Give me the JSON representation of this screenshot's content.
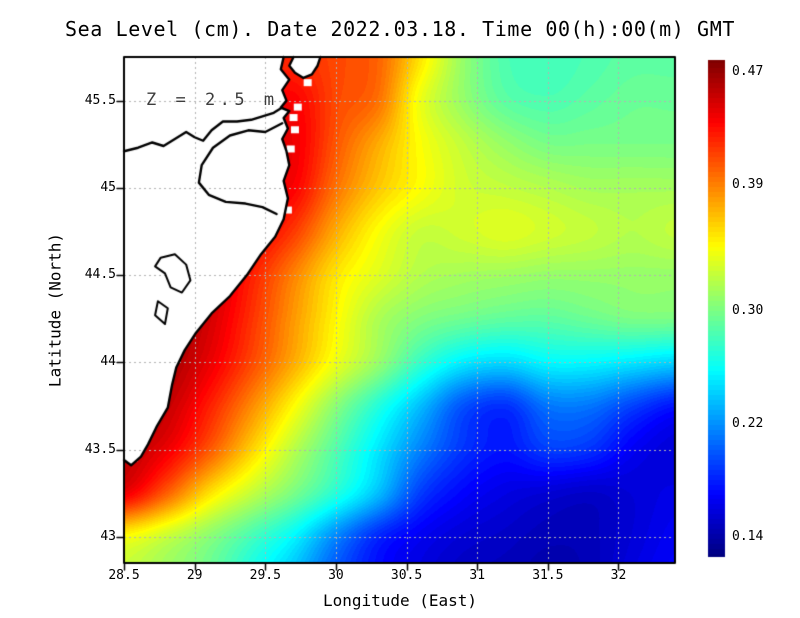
{
  "figure": {
    "title": "Sea Level (cm). Date 2022.03.18. Time 00(h):00(m) GMT",
    "annotation": "Z = 2.5 m",
    "background_color": "#ffffff",
    "land_color": "#ffffff",
    "coast_color": "#000000",
    "grid_color": "#b3b3b3"
  },
  "axes": {
    "x_label": "Longitude (East)",
    "y_label": "Latitude (North)",
    "x_range": [
      28.5,
      32.4
    ],
    "y_range": [
      42.85,
      45.75
    ],
    "x_ticks": [
      28.5,
      29,
      29.5,
      30,
      30.5,
      31,
      31.5,
      32
    ],
    "x_tick_labels": [
      "28.5",
      "29",
      "29.5",
      "30",
      "30.5",
      "31",
      "31.5",
      "32"
    ],
    "y_ticks": [
      45.5,
      45,
      44.5,
      44,
      43.5,
      43
    ],
    "y_tick_labels": [
      "45.5",
      "45",
      "44.5",
      "44",
      "43.5",
      "43"
    ],
    "grid": "dotted"
  },
  "colorbar": {
    "colormap": "jet",
    "vmin": 0.1255,
    "vmax": 0.4785,
    "ticks": [
      0.47,
      0.39,
      0.3,
      0.22,
      0.14
    ],
    "tick_labels": [
      "0.47",
      "0.39",
      "0.30",
      "0.22",
      "0.14"
    ]
  },
  "chart_data": {
    "type": "heatmap",
    "title": "Sea Level (cm). Date 2022.03.18. Time 00(h):00(m) GMT",
    "xlabel": "Longitude (East)",
    "ylabel": "Latitude (North)",
    "units": "cm",
    "x": [
      28.5,
      28.8,
      29.1,
      29.4,
      29.7,
      30.0,
      30.3,
      30.6,
      30.9,
      31.2,
      31.5,
      31.8,
      32.1,
      32.4
    ],
    "y": [
      45.75,
      45.5,
      45.25,
      45.0,
      44.75,
      44.5,
      44.25,
      44.0,
      43.75,
      43.5,
      43.25,
      43.0,
      42.75
    ],
    "values": [
      [
        0.42,
        0.42,
        0.42,
        0.42,
        0.42,
        0.41,
        0.4,
        0.355,
        0.31,
        0.285,
        0.28,
        0.285,
        0.29,
        0.29
      ],
      [
        0.43,
        0.43,
        0.43,
        0.43,
        0.435,
        0.41,
        0.395,
        0.34,
        0.31,
        0.29,
        0.285,
        0.29,
        0.295,
        0.295
      ],
      [
        0.435,
        0.435,
        0.435,
        0.44,
        0.44,
        0.405,
        0.375,
        0.345,
        0.325,
        0.31,
        0.3,
        0.3,
        0.3,
        0.3
      ],
      [
        0.44,
        0.44,
        0.44,
        0.44,
        0.435,
        0.395,
        0.365,
        0.345,
        0.33,
        0.325,
        0.32,
        0.315,
        0.315,
        0.315
      ],
      [
        0.45,
        0.455,
        0.455,
        0.44,
        0.415,
        0.375,
        0.345,
        0.327,
        0.33,
        0.335,
        0.33,
        0.325,
        0.32,
        0.325
      ],
      [
        0.465,
        0.468,
        0.455,
        0.425,
        0.39,
        0.355,
        0.335,
        0.32,
        0.315,
        0.313,
        0.31,
        0.31,
        0.31,
        0.31
      ],
      [
        0.468,
        0.47,
        0.45,
        0.418,
        0.382,
        0.348,
        0.318,
        0.303,
        0.296,
        0.291,
        0.29,
        0.295,
        0.3,
        0.3
      ],
      [
        0.47,
        0.465,
        0.442,
        0.41,
        0.375,
        0.34,
        0.31,
        0.276,
        0.252,
        0.245,
        0.256,
        0.256,
        0.25,
        0.243
      ],
      [
        0.465,
        0.455,
        0.425,
        0.387,
        0.347,
        0.306,
        0.27,
        0.235,
        0.198,
        0.186,
        0.21,
        0.21,
        0.192,
        0.176
      ],
      [
        0.458,
        0.44,
        0.405,
        0.362,
        0.322,
        0.286,
        0.25,
        0.214,
        0.187,
        0.176,
        0.19,
        0.186,
        0.166,
        0.156
      ],
      [
        0.44,
        0.402,
        0.357,
        0.326,
        0.3,
        0.27,
        0.235,
        0.19,
        0.17,
        0.16,
        0.155,
        0.151,
        0.156,
        0.161
      ],
      [
        0.345,
        0.327,
        0.306,
        0.282,
        0.256,
        0.216,
        0.182,
        0.165,
        0.155,
        0.15,
        0.145,
        0.146,
        0.156,
        0.166
      ],
      [
        0.325,
        0.312,
        0.295,
        0.265,
        0.235,
        0.198,
        0.173,
        0.158,
        0.148,
        0.145,
        0.141,
        0.145,
        0.16,
        0.17
      ]
    ]
  },
  "map": {
    "coast_main": [
      [
        29.63,
        45.75
      ],
      [
        29.61,
        45.68
      ],
      [
        29.67,
        45.62
      ],
      [
        29.62,
        45.56
      ],
      [
        29.65,
        45.5
      ],
      [
        29.61,
        45.46
      ],
      [
        29.67,
        45.44
      ],
      [
        29.63,
        45.4
      ],
      [
        29.66,
        45.34
      ],
      [
        29.62,
        45.28
      ],
      [
        29.65,
        45.21
      ],
      [
        29.67,
        45.13
      ],
      [
        29.63,
        45.04
      ],
      [
        29.66,
        44.94
      ],
      [
        29.63,
        44.82
      ],
      [
        29.57,
        44.72
      ],
      [
        29.47,
        44.62
      ],
      [
        29.37,
        44.5
      ],
      [
        29.25,
        44.38
      ],
      [
        29.12,
        44.28
      ],
      [
        29.01,
        44.17
      ],
      [
        28.93,
        44.07
      ],
      [
        28.87,
        43.97
      ],
      [
        28.84,
        43.87
      ],
      [
        28.81,
        43.74
      ],
      [
        28.73,
        43.63
      ],
      [
        28.67,
        43.53
      ],
      [
        28.62,
        43.46
      ],
      [
        28.55,
        43.41
      ],
      [
        28.5,
        43.44
      ]
    ],
    "north_coast": [
      [
        28.5,
        45.21
      ],
      [
        28.6,
        45.23
      ],
      [
        28.7,
        45.26
      ],
      [
        28.78,
        45.24
      ],
      [
        28.86,
        45.28
      ],
      [
        28.94,
        45.32
      ],
      [
        29.0,
        45.29
      ],
      [
        29.06,
        45.27
      ],
      [
        29.12,
        45.33
      ],
      [
        29.2,
        45.38
      ],
      [
        29.3,
        45.38
      ],
      [
        29.4,
        45.39
      ],
      [
        29.48,
        45.41
      ],
      [
        29.56,
        45.43
      ],
      [
        29.62,
        45.46
      ]
    ],
    "bay_line": [
      [
        29.62,
        45.37
      ],
      [
        29.5,
        45.32
      ],
      [
        29.38,
        45.33
      ],
      [
        29.25,
        45.3
      ],
      [
        29.13,
        45.23
      ],
      [
        29.05,
        45.13
      ],
      [
        29.03,
        45.03
      ],
      [
        29.1,
        44.96
      ],
      [
        29.22,
        44.92
      ],
      [
        29.36,
        44.91
      ],
      [
        29.48,
        44.89
      ],
      [
        29.58,
        44.85
      ]
    ],
    "island": [
      [
        29.7,
        45.75
      ],
      [
        29.67,
        45.7
      ],
      [
        29.71,
        45.66
      ],
      [
        29.77,
        45.63
      ],
      [
        29.83,
        45.65
      ],
      [
        29.87,
        45.7
      ],
      [
        29.89,
        45.75
      ]
    ],
    "lagoon_a": [
      [
        28.76,
        44.6
      ],
      [
        28.86,
        44.62
      ],
      [
        28.94,
        44.56
      ],
      [
        28.97,
        44.47
      ],
      [
        28.91,
        44.4
      ],
      [
        28.83,
        44.43
      ],
      [
        28.79,
        44.51
      ],
      [
        28.72,
        44.55
      ],
      [
        28.76,
        44.6
      ]
    ],
    "lagoon_b": [
      [
        28.74,
        44.35
      ],
      [
        28.81,
        44.31
      ],
      [
        28.79,
        44.22
      ],
      [
        28.72,
        44.27
      ],
      [
        28.74,
        44.35
      ]
    ],
    "masked_cells": [
      [
        29.73,
        45.46
      ],
      [
        29.7,
        45.4
      ],
      [
        29.71,
        45.33
      ],
      [
        29.68,
        45.22
      ],
      [
        29.8,
        45.6
      ],
      [
        29.66,
        44.87
      ],
      [
        28.6,
        43.58
      ],
      [
        28.57,
        43.45
      ],
      [
        28.56,
        43.62
      ]
    ]
  }
}
